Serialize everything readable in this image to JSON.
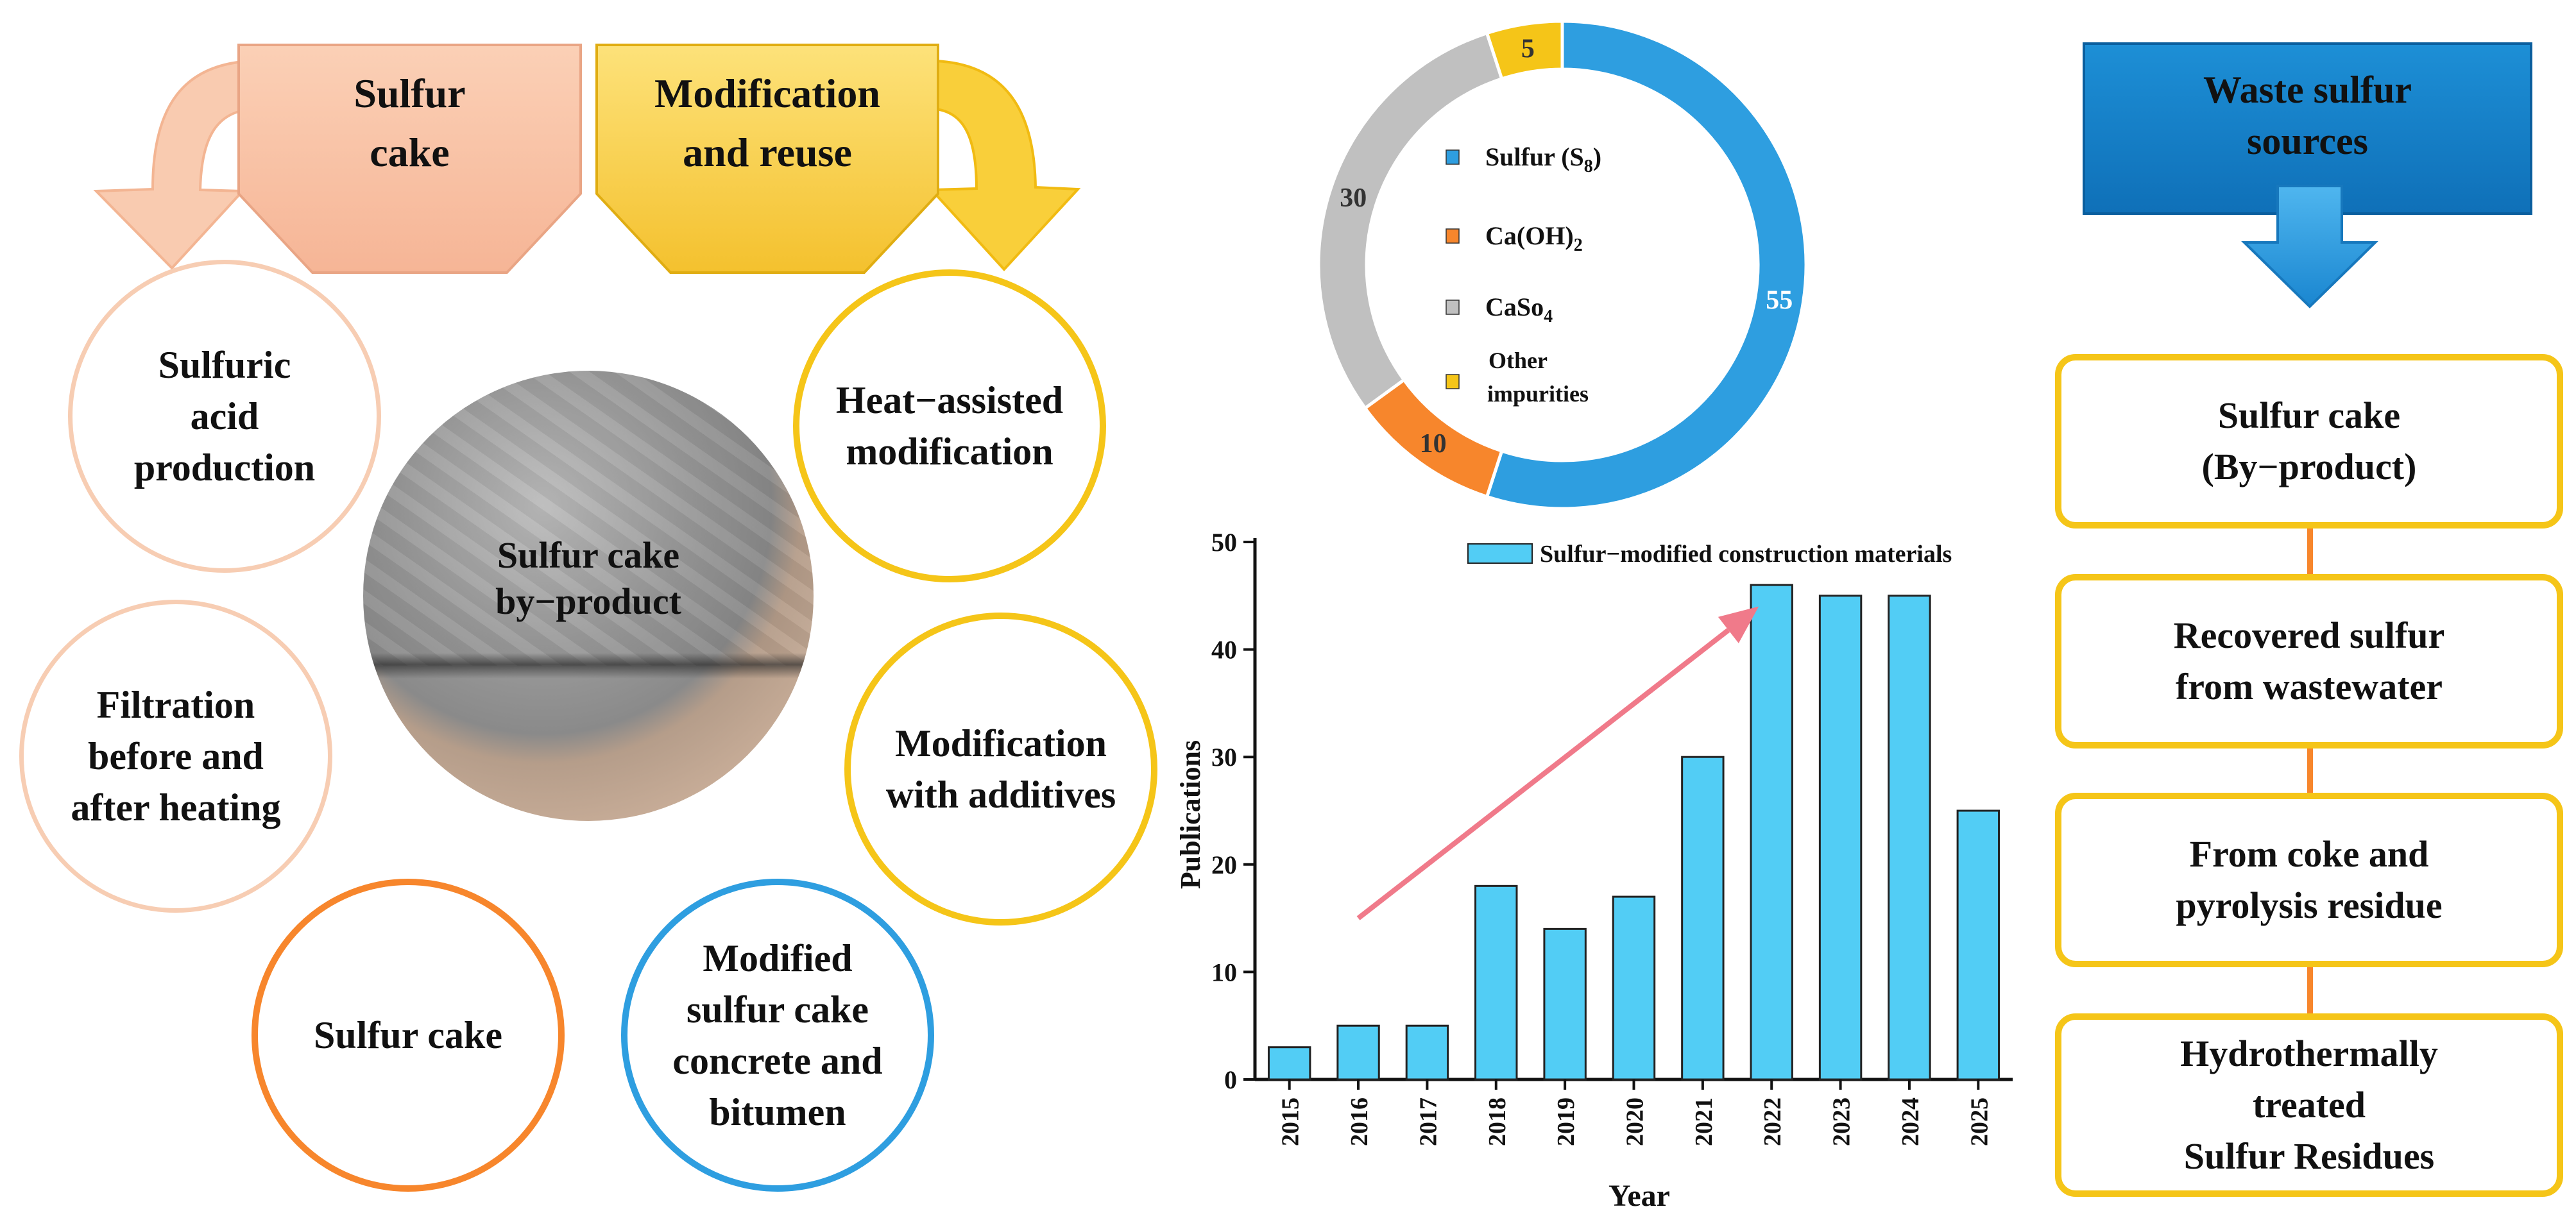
{
  "banners": {
    "left": "Sulfur\ncake",
    "right": "Modification\nand reuse"
  },
  "circles": {
    "sulfuric_acid": "Sulfuric\nacid\nproduction",
    "filtration": "Filtration\nbefore and\nafter heating",
    "sulfur_cake": "Sulfur cake",
    "modified_concrete": "Modified\nsulfur cake\nconcrete and\nbitumen",
    "heat_assisted": "Heat−assisted\nmodification",
    "additives": "Modification\nwith additives"
  },
  "photo_label": "Sulfur cake\nby−product",
  "composition": {
    "legend": {
      "s8_prefix": "Sulfur (S",
      "s8_sub": "8",
      "s8_suffix": ")",
      "caoh_prefix": "Ca(OH)",
      "caoh_sub": "2",
      "caso_prefix": "CaSo",
      "caso_sub": "4",
      "other_line1": "Other",
      "other_line2": "impurities"
    },
    "segments": [
      {
        "name": "Sulfur (S8)",
        "value": 55,
        "label": "55",
        "color": "#2e9ee0"
      },
      {
        "name": "Ca(OH)2",
        "value": 10,
        "label": "10",
        "color": "#f7862c"
      },
      {
        "name": "CaSo4",
        "value": 30,
        "label": "30",
        "color": "#c0c0c0"
      },
      {
        "name": "Other impurities",
        "value": 5,
        "label": "5",
        "color": "#f5c518"
      }
    ]
  },
  "chart_data": [
    {
      "type": "pie",
      "title": "",
      "categories": [
        "Sulfur (S8)",
        "Ca(OH)2",
        "CaSo4",
        "Other impurities"
      ],
      "values": [
        55,
        10,
        30,
        5
      ]
    },
    {
      "type": "bar",
      "title": "",
      "legend": "Sulfur−modified construction materials",
      "xlabel": "Year",
      "ylabel": "Publications",
      "categories": [
        "2015",
        "2016",
        "2017",
        "2018",
        "2019",
        "2020",
        "2021",
        "2022",
        "2023",
        "2024",
        "2025"
      ],
      "values": [
        3,
        5,
        5,
        18,
        14,
        17,
        30,
        46,
        45,
        45,
        25
      ],
      "ylim": [
        0,
        50
      ],
      "yticks": [
        "0",
        "10",
        "20",
        "30",
        "40",
        "50"
      ],
      "trend_arrow": {
        "from_x": "2016",
        "from_y": 15,
        "to_x": "2022",
        "to_y": 44
      },
      "bar_color": "#52cdf5"
    }
  ],
  "sources": {
    "header": "Waste sulfur\nsources",
    "boxes": [
      "Sulfur cake\n(By−product)",
      "Recovered sulfur\nfrom wastewater",
      "From coke and\npyrolysis residue",
      "Hydrothermally\ntreated\nSulfur Residues"
    ]
  }
}
